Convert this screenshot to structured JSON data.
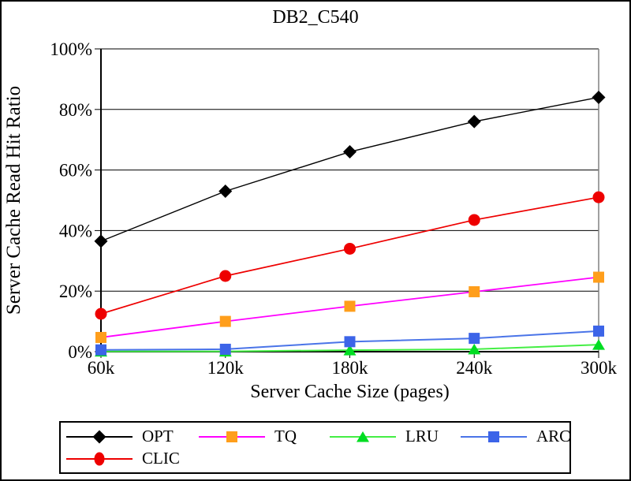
{
  "chart_data": {
    "type": "line",
    "title": "DB2_C540",
    "xlabel": "Server Cache Size (pages)",
    "ylabel": "Server Cache Read Hit Ratio",
    "x_tick_labels": [
      "60k",
      "120k",
      "180k",
      "240k",
      "300k"
    ],
    "x_values": [
      60000,
      120000,
      180000,
      240000,
      300000
    ],
    "y_tick_labels": [
      "0%",
      "20%",
      "40%",
      "60%",
      "80%",
      "100%"
    ],
    "y_ticks": [
      0,
      20,
      40,
      60,
      80,
      100
    ],
    "ylim": [
      0,
      100
    ],
    "grid": true,
    "legend_position": "bottom",
    "legend_display_order": [
      "OPT",
      "TQ",
      "LRU",
      "ARC",
      "CLIC"
    ],
    "series": [
      {
        "name": "OPT",
        "marker": "diamond",
        "line_color": "#000000",
        "marker_color": "#000000",
        "values": [
          36.5,
          53,
          66,
          76,
          84
        ]
      },
      {
        "name": "CLIC",
        "marker": "circle",
        "line_color": "#ee0000",
        "marker_color": "#ee0000",
        "values": [
          12.5,
          25,
          34,
          43.5,
          51
        ]
      },
      {
        "name": "TQ",
        "marker": "square",
        "line_color": "#ff00ff",
        "marker_color": "#ff9e1b",
        "values": [
          4.7,
          10,
          15,
          19.8,
          24.6
        ]
      },
      {
        "name": "LRU",
        "marker": "triangle",
        "line_color": "#44ee44",
        "marker_color": "#00dd22",
        "values": [
          0.1,
          0.1,
          0.5,
          0.8,
          2.3
        ]
      },
      {
        "name": "ARC",
        "marker": "square",
        "line_color": "#4a74e8",
        "marker_color": "#3c64e8",
        "values": [
          0.6,
          0.8,
          3.3,
          4.4,
          6.8
        ]
      }
    ],
    "colors": {
      "axis": "#000000",
      "gridline": "#000000",
      "plot_right_border": "#808080",
      "background": "#ffffff"
    }
  }
}
